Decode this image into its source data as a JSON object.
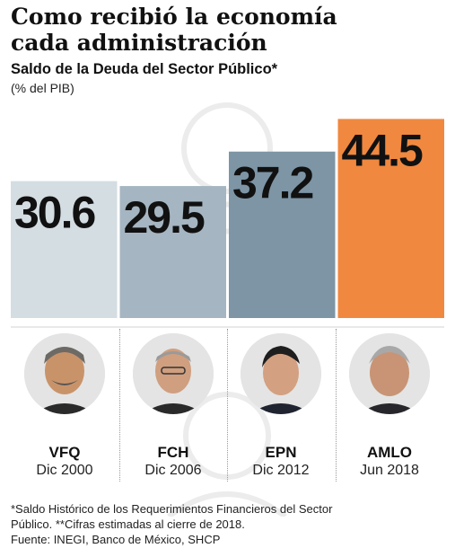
{
  "header": {
    "title_line1": "Como recibió la economía",
    "title_line2": "cada administración",
    "subtitle": "Saldo de la Deuda del Sector Público*",
    "units": "(% del PIB)"
  },
  "chart_data": {
    "type": "bar",
    "title": "Como recibió la economía cada administración",
    "subtitle": "Saldo de la Deuda del Sector Público*",
    "ylabel": "(% del PIB)",
    "categories": [
      "VFQ",
      "FCH",
      "EPN",
      "AMLO"
    ],
    "dates": [
      "Dic 2000",
      "Dic 2006",
      "Dic 2012",
      "Jun 2018"
    ],
    "values": [
      30.6,
      29.5,
      37.2,
      44.5
    ],
    "value_labels": [
      "30.6",
      "29.5",
      "37.2",
      "44.5"
    ],
    "colors": [
      "#d4dde2",
      "#a5b5c1",
      "#7d95a5",
      "#f08840"
    ],
    "grid": false,
    "legend": "none"
  },
  "people": [
    {
      "name": "VFQ",
      "date": "Dic 2000",
      "icon": "portrait-icon"
    },
    {
      "name": "FCH",
      "date": "Dic 2006",
      "icon": "portrait-icon"
    },
    {
      "name": "EPN",
      "date": "Dic 2012",
      "icon": "portrait-icon"
    },
    {
      "name": "AMLO",
      "date": "Jun 2018",
      "icon": "portrait-icon"
    }
  ],
  "footnotes": {
    "line1": "*Saldo Histórico de los Requerimientos Financieros del Sector",
    "line2": "Público. **Cifras estimadas al cierre de 2018.",
    "line3": "Fuente: INEGI, Banco de México, SHCP"
  },
  "watermark": "seal-icon"
}
